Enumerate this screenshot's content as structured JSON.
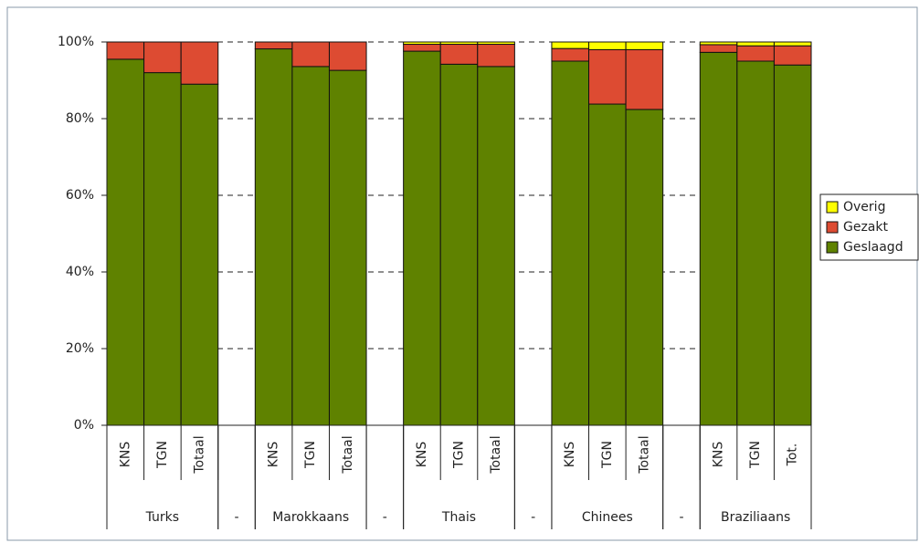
{
  "chart_data": {
    "type": "stacked-bar",
    "categories": [
      "KNS",
      "TGN",
      "Totaal",
      null,
      "KNS",
      "TGN",
      "Totaal",
      null,
      "KNS",
      "TGN",
      "Totaal",
      null,
      "KNS",
      "TGN",
      "Totaal",
      null,
      "KNS",
      "TGN",
      "Tot."
    ],
    "groups": [
      "Turks",
      "-",
      "Marokkaans",
      "-",
      "Thais",
      "-",
      "Chinees",
      "-",
      "Braziliaans"
    ],
    "series": [
      {
        "name": "Geslaagd",
        "color": "#5f8200",
        "values": [
          95.5,
          92,
          89,
          null,
          98.2,
          93.6,
          92.6,
          null,
          97.6,
          94.2,
          93.6,
          null,
          95,
          83.8,
          82.4,
          null,
          97.3,
          95,
          94
        ]
      },
      {
        "name": "Gezakt",
        "color": "#dd4b32",
        "values": [
          4.5,
          8,
          11,
          null,
          1.8,
          6.4,
          7.4,
          null,
          1.8,
          5.2,
          5.8,
          null,
          3.3,
          14.2,
          15.6,
          null,
          2,
          4,
          5
        ]
      },
      {
        "name": "Overig",
        "color": "#ffff00",
        "values": [
          0,
          0,
          0,
          null,
          0,
          0,
          0,
          null,
          0.6,
          0.6,
          0.6,
          null,
          1.7,
          2,
          2,
          null,
          0.7,
          1,
          1
        ]
      }
    ],
    "ylim": [
      0,
      100
    ],
    "yticks": [
      {
        "value": 0,
        "label": "0%"
      },
      {
        "value": 20,
        "label": "20%"
      },
      {
        "value": 40,
        "label": "40%"
      },
      {
        "value": 60,
        "label": "60%"
      },
      {
        "value": 80,
        "label": "80%"
      },
      {
        "value": 100,
        "label": "100%"
      }
    ],
    "grid": true,
    "legend": "right"
  }
}
